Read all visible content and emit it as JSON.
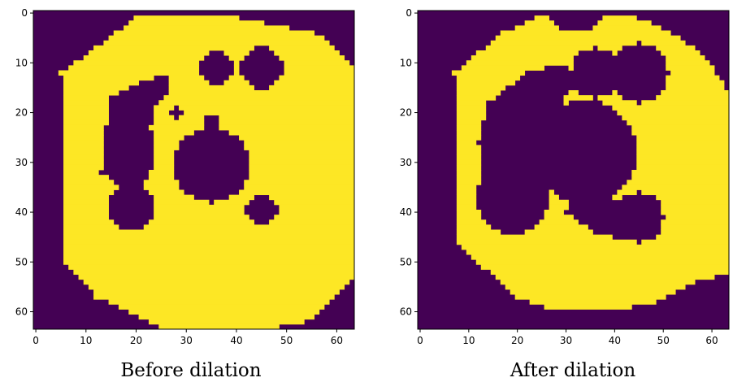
{
  "colors": {
    "background_value": "#440154",
    "foreground_value": "#fde725"
  },
  "chart_data": [
    {
      "type": "heatmap",
      "caption": "Before dilation",
      "grid_size": 64,
      "xticks": [
        0,
        10,
        20,
        30,
        40,
        50,
        60
      ],
      "yticks": [
        0,
        10,
        20,
        30,
        40,
        50,
        60
      ],
      "xlim": [
        -0.5,
        63.5
      ],
      "ylim": [
        63.5,
        -0.5
      ],
      "foreground": {
        "outer": [
          [
            36,
            0
          ],
          [
            56,
            4
          ],
          [
            63,
            10
          ],
          [
            64,
            53
          ],
          [
            54,
            62
          ],
          [
            46,
            63.5
          ],
          [
            26,
            63.5
          ],
          [
            12,
            57
          ],
          [
            6,
            50
          ],
          [
            5,
            12
          ],
          [
            20,
            1
          ]
        ],
        "holes": [
          {
            "type": "circle",
            "cx": 35,
            "cy": 30.5,
            "r": 7.5
          },
          {
            "type": "circle",
            "cx": 19,
            "cy": 39,
            "r": 4.5
          },
          {
            "type": "circle",
            "cx": 36,
            "cy": 11,
            "r": 3.5
          },
          {
            "type": "circle",
            "cx": 45,
            "cy": 11,
            "r": 4.2
          },
          {
            "type": "circle",
            "cx": 45,
            "cy": 39.5,
            "r": 3.2
          },
          {
            "type": "poly",
            "points": [
              [
                15,
                17
              ],
              [
                22,
                13.5
              ],
              [
                26,
                12.5
              ],
              [
                27,
                15
              ],
              [
                24,
                19
              ],
              [
                23,
                23
              ],
              [
                24,
                29
              ],
              [
                22,
                34
              ],
              [
                17,
                35
              ],
              [
                13,
                32
              ],
              [
                13.5,
                24
              ],
              [
                15,
                21
              ]
            ]
          },
          {
            "type": "circle",
            "cx": 28,
            "cy": 20,
            "r": 1.0
          },
          {
            "type": "circle",
            "cx": 35,
            "cy": 22,
            "r": 1.5
          }
        ]
      }
    },
    {
      "type": "heatmap",
      "caption": "After dilation",
      "grid_size": 64,
      "xticks": [
        0,
        10,
        20,
        30,
        40,
        50,
        60
      ],
      "yticks": [
        0,
        10,
        20,
        30,
        40,
        50,
        60
      ],
      "xlim": [
        -0.5,
        63.5
      ],
      "ylim": [
        63.5,
        -0.5
      ],
      "foreground": {
        "outer": [
          [
            26,
            0
          ],
          [
            29,
            3
          ],
          [
            31,
            4
          ],
          [
            34,
            4
          ],
          [
            38,
            1
          ],
          [
            42,
            0
          ],
          [
            50,
            3
          ],
          [
            58,
            8
          ],
          [
            63,
            15
          ],
          [
            63.5,
            52
          ],
          [
            57,
            54
          ],
          [
            49,
            58
          ],
          [
            39,
            60
          ],
          [
            28,
            60
          ],
          [
            20,
            57
          ],
          [
            13,
            51
          ],
          [
            8,
            46
          ],
          [
            7,
            12
          ],
          [
            17,
            4
          ]
        ],
        "holes": [
          {
            "type": "circle",
            "cx": 34,
            "cy": 28,
            "r": 10.5
          },
          {
            "type": "circle",
            "cx": 19,
            "cy": 37,
            "r": 7.5
          },
          {
            "type": "circle",
            "cx": 45,
            "cy": 41,
            "r": 5.0
          },
          {
            "type": "circle",
            "cx": 36,
            "cy": 12,
            "r": 5.0
          },
          {
            "type": "circle",
            "cx": 45,
            "cy": 12,
            "r": 6.0
          },
          {
            "type": "poly",
            "points": [
              [
                14,
                18
              ],
              [
                22,
                12
              ],
              [
                29,
                10
              ],
              [
                33,
                12
              ],
              [
                28,
                20
              ],
              [
                24,
                26
              ],
              [
                24,
                32
              ],
              [
                20,
                36
              ],
              [
                13,
                34
              ],
              [
                12,
                26
              ]
            ]
          },
          {
            "type": "poly",
            "points": [
              [
                34,
                36
              ],
              [
                42,
                38
              ],
              [
                49,
                40
              ],
              [
                50,
                44
              ],
              [
                44,
                46
              ],
              [
                36,
                44
              ],
              [
                30,
                40
              ]
            ]
          }
        ]
      }
    }
  ]
}
